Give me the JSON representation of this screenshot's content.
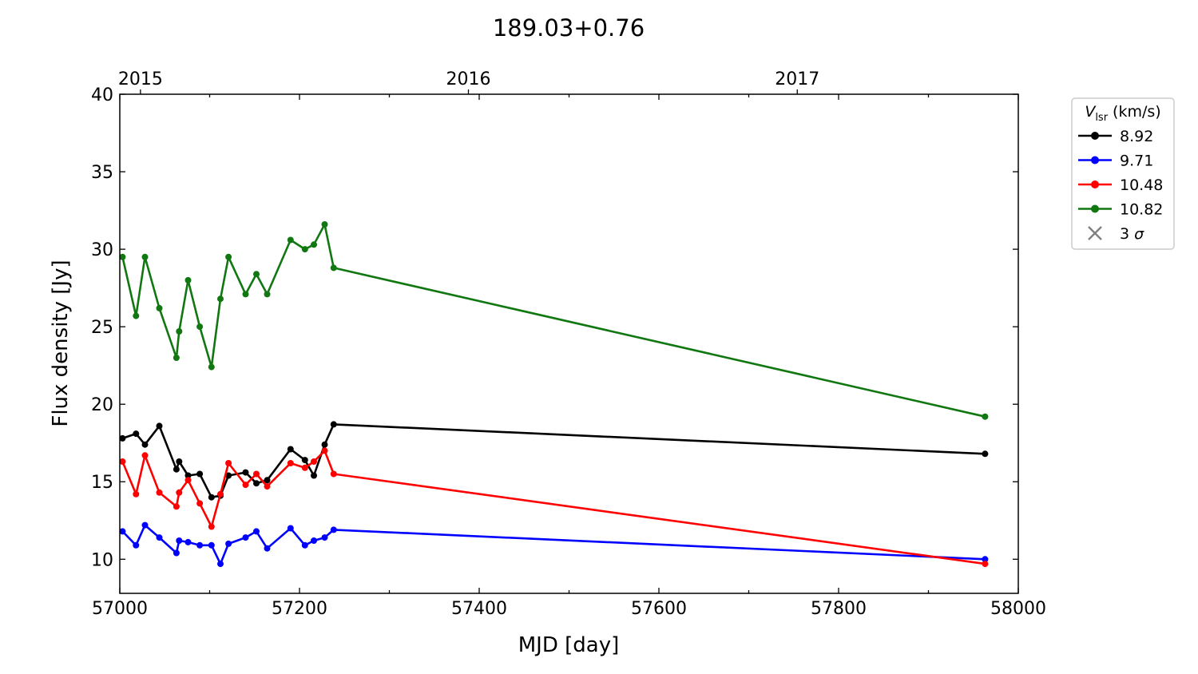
{
  "chart_data": {
    "type": "line",
    "title": "189.03+0.76",
    "xlabel": "MJD [day]",
    "ylabel": "Flux density [Jy]",
    "xlim": [
      57000,
      58000
    ],
    "ylim": [
      7.8,
      40
    ],
    "x_ticks": [
      57000,
      57200,
      57400,
      57600,
      57800,
      58000
    ],
    "y_ticks": [
      10,
      15,
      20,
      25,
      30,
      35,
      40
    ],
    "top_axis": {
      "ticks": [
        {
          "mjd": 57023,
          "label": "2015"
        },
        {
          "mjd": 57388,
          "label": "2016"
        },
        {
          "mjd": 57754,
          "label": "2017"
        }
      ]
    },
    "grid": false,
    "legend": {
      "title_symbol": "V",
      "title_subscript": "lsr",
      "title_unit": "(km/s)",
      "placement": "outside-upper-right",
      "extra_entry": {
        "label_text": "3",
        "label_symbol": "σ",
        "marker": "x",
        "color": "#808080"
      }
    },
    "x": [
      57003,
      57018,
      57028,
      57044,
      57063,
      57066,
      57076,
      57089,
      57102,
      57112,
      57121,
      57140,
      57152,
      57164,
      57190,
      57206,
      57216,
      57228,
      57238,
      57963
    ],
    "series": [
      {
        "name": "8.92",
        "color": "#000000",
        "values": [
          17.8,
          18.1,
          17.4,
          18.6,
          15.8,
          16.3,
          15.4,
          15.5,
          14.0,
          14.1,
          15.4,
          15.6,
          14.9,
          15.1,
          17.1,
          16.4,
          15.4,
          17.4,
          18.7,
          16.8
        ]
      },
      {
        "name": "9.71",
        "color": "#0000ff",
        "values": [
          11.8,
          10.9,
          12.2,
          11.4,
          10.4,
          11.2,
          11.1,
          10.9,
          10.9,
          9.7,
          11.0,
          11.4,
          11.8,
          10.7,
          12.0,
          10.9,
          11.2,
          11.4,
          11.9,
          10.0
        ]
      },
      {
        "name": "10.48",
        "color": "#ff0000",
        "values": [
          16.3,
          14.2,
          16.7,
          14.3,
          13.4,
          14.3,
          15.1,
          13.6,
          12.1,
          14.2,
          16.2,
          14.8,
          15.5,
          14.7,
          16.2,
          15.9,
          16.3,
          17.0,
          15.5,
          9.7
        ]
      },
      {
        "name": "10.82",
        "color": "#117711",
        "values": [
          29.5,
          25.7,
          29.5,
          26.2,
          23.0,
          24.7,
          28.0,
          25.0,
          22.4,
          26.8,
          29.5,
          27.1,
          28.4,
          27.1,
          30.6,
          30.0,
          30.3,
          31.6,
          28.8,
          19.2
        ]
      }
    ]
  }
}
